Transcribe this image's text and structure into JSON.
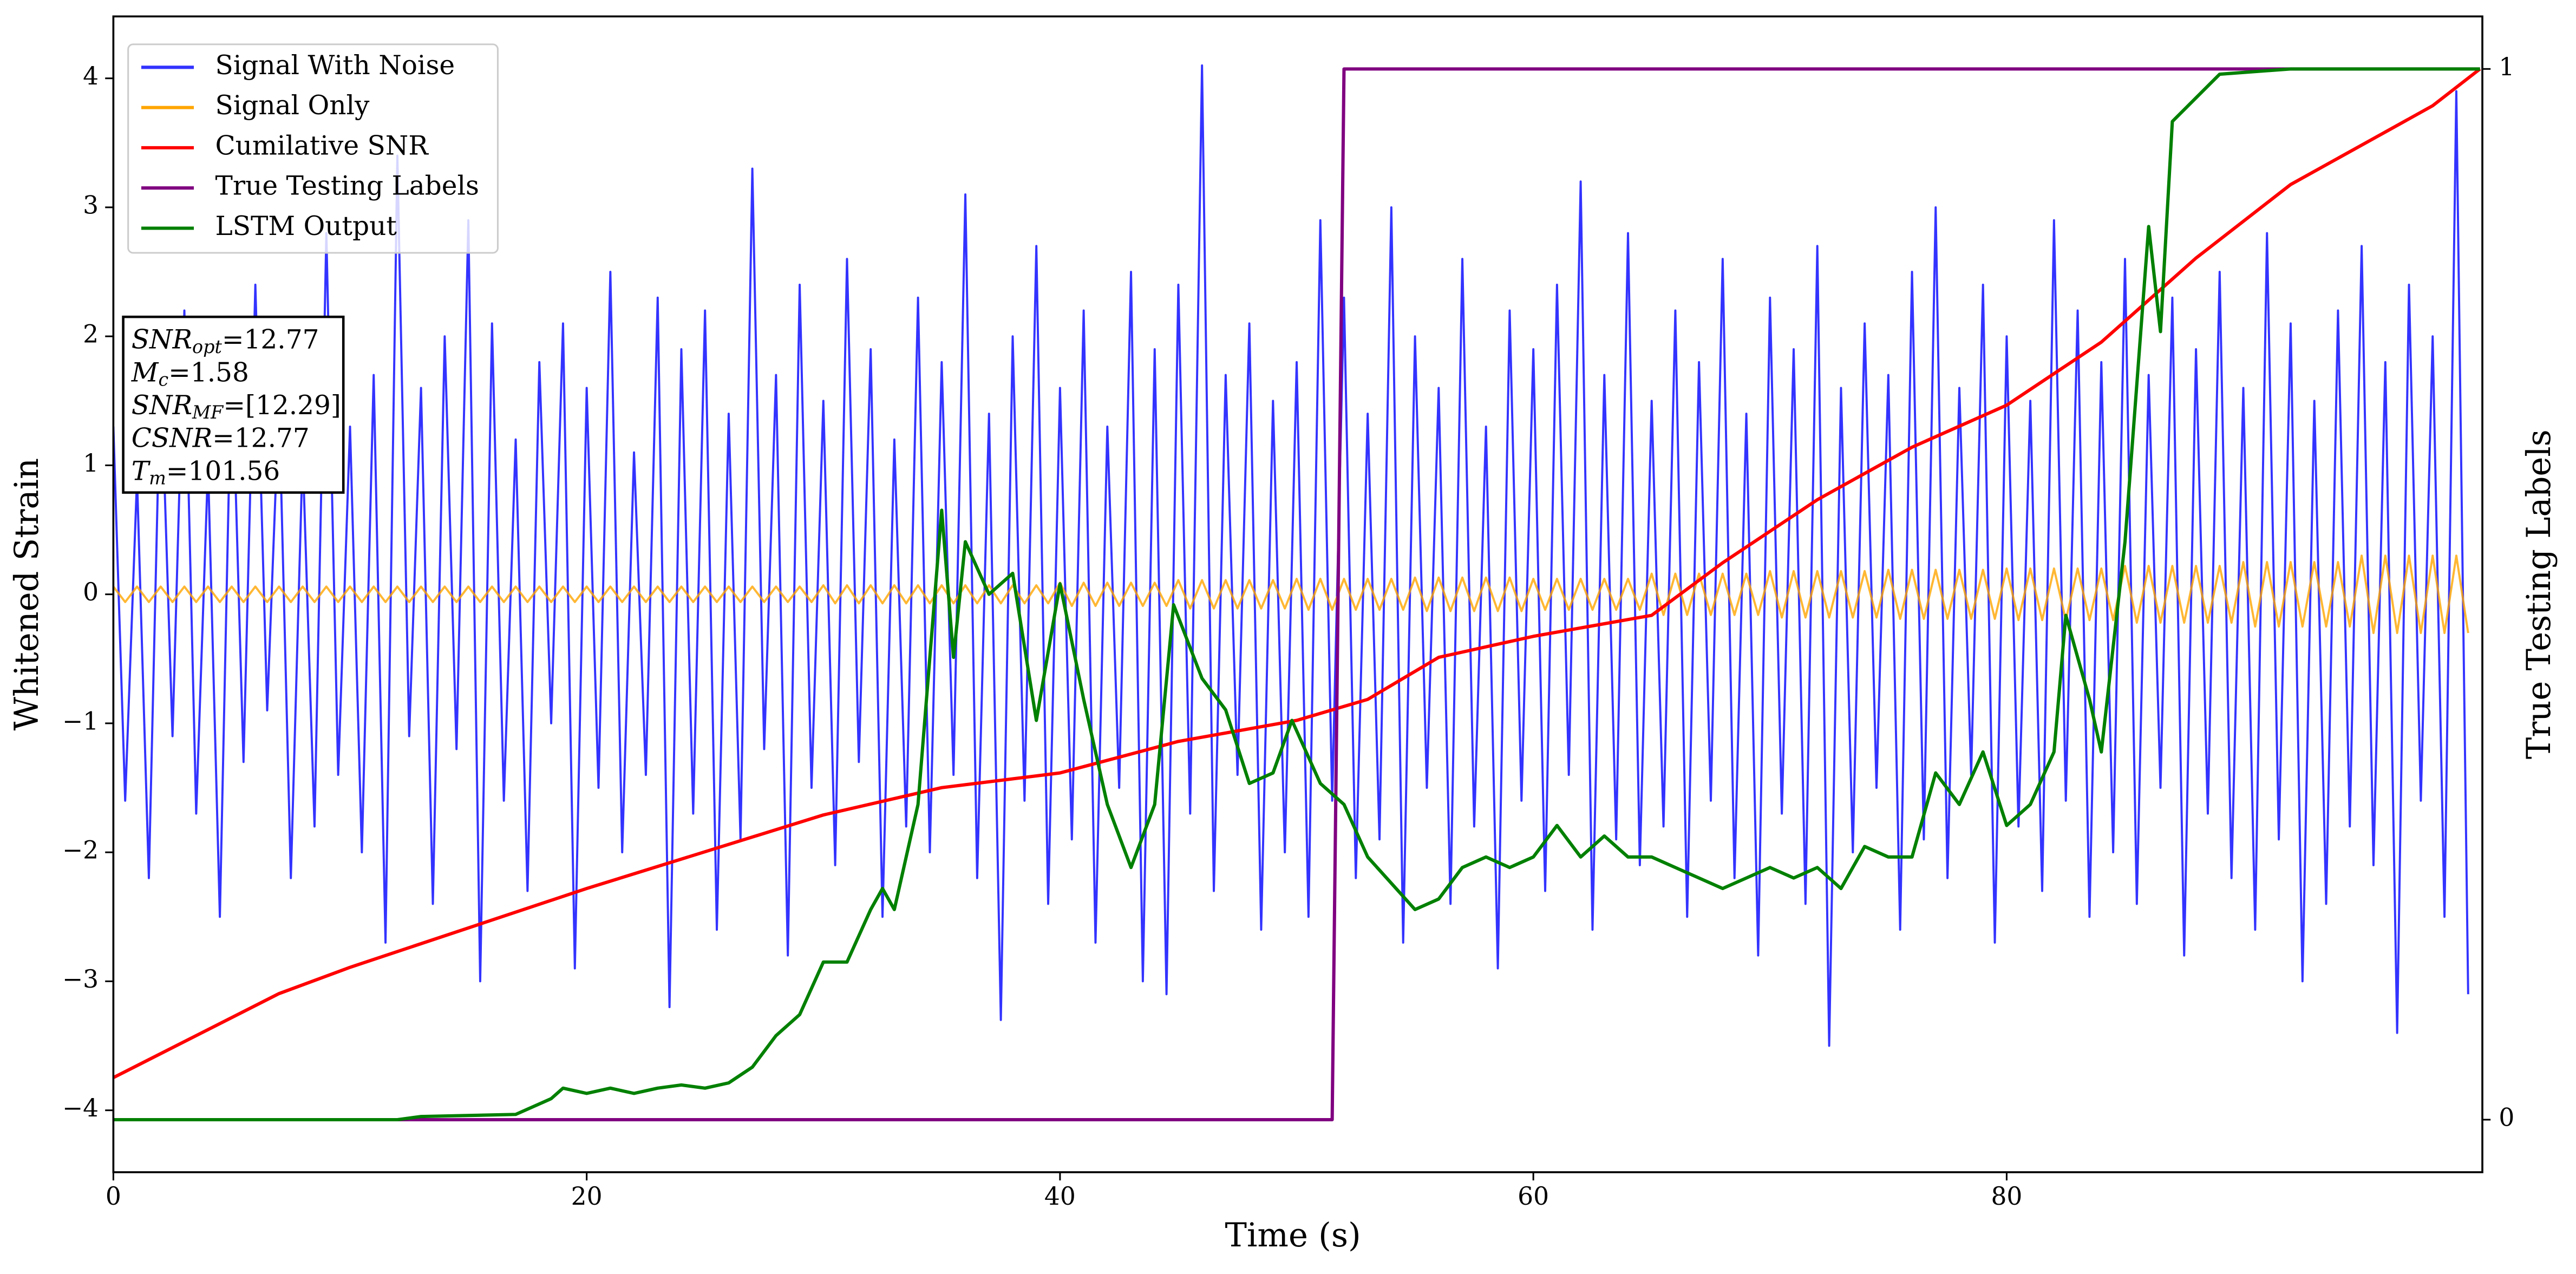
{
  "chart_data": {
    "type": "line",
    "xlabel": "Time (s)",
    "ylabel": "Whitened Strain",
    "y2label": "True Testing Labels",
    "xlim": [
      0,
      100.1
    ],
    "ylim": [
      -4.48,
      4.48
    ],
    "y2lim": [
      -0.05,
      1.05
    ],
    "xticks": [
      0,
      20,
      40,
      60,
      80
    ],
    "yticks": [
      {
        "value": -4,
        "label": "−4"
      },
      {
        "value": -3,
        "label": "−3"
      },
      {
        "value": -2,
        "label": "−2"
      },
      {
        "value": -1,
        "label": "−1"
      },
      0,
      1,
      2,
      3,
      4
    ],
    "y2ticks": [
      0,
      1
    ],
    "legend": "upper left",
    "x": [
      0,
      0.5,
      1,
      1.5,
      2,
      2.5,
      3,
      3.5,
      4,
      4.5,
      5,
      5.5,
      6,
      6.5,
      7,
      7.5,
      8,
      8.5,
      9,
      9.5,
      10,
      10.5,
      11,
      11.5,
      12,
      12.5,
      13,
      13.5,
      14,
      14.5,
      15,
      15.5,
      16,
      16.5,
      17,
      17.5,
      18,
      18.5,
      19,
      19.5,
      20,
      20.5,
      21,
      21.5,
      22,
      22.5,
      23,
      23.5,
      24,
      24.5,
      25,
      25.5,
      26,
      26.5,
      27,
      27.5,
      28,
      28.5,
      29,
      29.5,
      30,
      30.5,
      31,
      31.5,
      32,
      32.5,
      33,
      33.5,
      34,
      34.5,
      35,
      35.5,
      36,
      36.5,
      37,
      37.5,
      38,
      38.5,
      39,
      39.5,
      40,
      40.5,
      41,
      41.5,
      42,
      42.5,
      43,
      43.5,
      44,
      44.5,
      45,
      45.5,
      46,
      46.5,
      47,
      47.5,
      48,
      48.5,
      49,
      49.5,
      50,
      50.5,
      51,
      51.5,
      52,
      52.5,
      53,
      53.5,
      54,
      54.5,
      55,
      55.5,
      56,
      56.5,
      57,
      57.5,
      58,
      58.5,
      59,
      59.5,
      60,
      60.5,
      61,
      61.5,
      62,
      62.5,
      63,
      63.5,
      64,
      64.5,
      65,
      65.5,
      66,
      66.5,
      67,
      67.5,
      68,
      68.5,
      69,
      69.5,
      70,
      70.5,
      71,
      71.5,
      72,
      72.5,
      73,
      73.5,
      74,
      74.5,
      75,
      75.5,
      76,
      76.5,
      77,
      77.5,
      78,
      78.5,
      79,
      79.5,
      80,
      80.5,
      81,
      81.5,
      82,
      82.5,
      83,
      83.5,
      84,
      84.5,
      85,
      85.5,
      86,
      86.5,
      87,
      87.5,
      88,
      88.5,
      89,
      89.5,
      90,
      90.5,
      91,
      91.5,
      92,
      92.5,
      93,
      93.5,
      94,
      94.5,
      95,
      95.5,
      96,
      96.5,
      97,
      97.5,
      98,
      98.5,
      99,
      99.5
    ],
    "series": [
      {
        "name": "Signal With Noise",
        "color": "#3333ff",
        "values": [
          1.3,
          -1.6,
          0.9,
          -2.2,
          1.8,
          -1.1,
          2.2,
          -1.7,
          1.0,
          -2.5,
          1.9,
          -1.3,
          2.4,
          -0.9,
          1.5,
          -2.2,
          1.1,
          -1.8,
          2.8,
          -1.4,
          1.3,
          -2.0,
          1.7,
          -2.7,
          3.4,
          -1.1,
          1.6,
          -2.4,
          2.0,
          -1.2,
          2.9,
          -3.0,
          2.1,
          -1.6,
          1.2,
          -2.3,
          1.8,
          -1.0,
          2.1,
          -2.9,
          1.6,
          -1.5,
          2.5,
          -2.0,
          1.1,
          -1.4,
          2.3,
          -3.2,
          1.9,
          -1.7,
          2.2,
          -2.6,
          1.4,
          -1.9,
          3.3,
          -1.2,
          1.7,
          -2.8,
          2.4,
          -1.5,
          1.5,
          -2.1,
          2.6,
          -1.3,
          1.9,
          -2.5,
          1.2,
          -1.8,
          2.3,
          -2.0,
          1.8,
          -1.4,
          3.1,
          -2.2,
          1.4,
          -3.3,
          2.0,
          -1.6,
          2.7,
          -2.4,
          1.6,
          -1.9,
          2.2,
          -2.7,
          1.3,
          -1.5,
          2.5,
          -3.0,
          1.9,
          -3.1,
          2.4,
          -1.7,
          4.1,
          -2.3,
          1.7,
          -1.4,
          2.1,
          -2.6,
          1.5,
          -2.0,
          1.8,
          -2.5,
          2.9,
          -1.6,
          2.3,
          -2.2,
          1.4,
          -1.9,
          3.0,
          -2.7,
          2.0,
          -1.5,
          1.6,
          -2.4,
          2.6,
          -1.8,
          1.3,
          -2.9,
          2.2,
          -1.6,
          1.9,
          -2.3,
          2.4,
          -1.4,
          3.2,
          -2.6,
          1.7,
          -1.9,
          2.8,
          -2.1,
          1.5,
          -1.8,
          2.2,
          -2.5,
          1.8,
          -1.6,
          2.6,
          -2.2,
          1.4,
          -2.8,
          2.3,
          -1.7,
          1.9,
          -2.4,
          2.7,
          -3.5,
          1.6,
          -2.0,
          2.1,
          -1.5,
          1.7,
          -2.6,
          2.5,
          -1.9,
          3.0,
          -2.2,
          1.6,
          -1.4,
          2.4,
          -2.7,
          2.0,
          -1.8,
          1.5,
          -2.3,
          2.9,
          -1.6,
          2.2,
          -2.5,
          1.8,
          -2.0,
          2.6,
          -2.4,
          1.7,
          -1.5,
          2.3,
          -2.8,
          1.9,
          -1.7,
          2.5,
          -2.2,
          1.6,
          -2.6,
          2.8,
          -1.9,
          2.1,
          -3.0,
          1.5,
          -2.4,
          2.2,
          -1.8,
          2.7,
          -2.1,
          1.8,
          -3.4,
          2.4,
          -1.6,
          2.0,
          -2.5,
          3.9,
          -3.1
        ]
      },
      {
        "name": "Signal Only",
        "color": "#ffa500",
        "values": [
          0.06,
          -0.06,
          0.06,
          -0.06,
          0.06,
          -0.06,
          0.06,
          -0.06,
          0.06,
          -0.06,
          0.06,
          -0.06,
          0.06,
          -0.06,
          0.06,
          -0.06,
          0.06,
          -0.06,
          0.06,
          -0.06,
          0.06,
          -0.06,
          0.06,
          -0.06,
          0.06,
          -0.06,
          0.06,
          -0.06,
          0.06,
          -0.06,
          0.06,
          -0.06,
          0.06,
          -0.06,
          0.06,
          -0.06,
          0.06,
          -0.06,
          0.06,
          -0.06,
          0.06,
          -0.06,
          0.06,
          -0.06,
          0.06,
          -0.06,
          0.06,
          -0.06,
          0.06,
          -0.06,
          0.06,
          -0.06,
          0.06,
          -0.06,
          0.06,
          -0.06,
          0.06,
          -0.06,
          0.06,
          -0.06,
          0.07,
          -0.07,
          0.07,
          -0.07,
          0.07,
          -0.07,
          0.07,
          -0.07,
          0.07,
          -0.07,
          0.07,
          -0.07,
          0.07,
          -0.07,
          0.07,
          -0.07,
          0.07,
          -0.07,
          0.07,
          -0.07,
          0.09,
          -0.09,
          0.09,
          -0.09,
          0.09,
          -0.09,
          0.09,
          -0.09,
          0.09,
          -0.09,
          0.11,
          -0.11,
          0.11,
          -0.11,
          0.11,
          -0.11,
          0.11,
          -0.11,
          0.11,
          -0.11,
          0.12,
          -0.12,
          0.12,
          -0.12,
          0.12,
          -0.12,
          0.12,
          -0.12,
          0.12,
          -0.12,
          0.13,
          -0.13,
          0.13,
          -0.13,
          0.13,
          -0.13,
          0.13,
          -0.13,
          0.13,
          -0.13,
          0.12,
          -0.12,
          0.12,
          -0.12,
          0.12,
          -0.12,
          0.12,
          -0.12,
          0.12,
          -0.12,
          0.16,
          -0.16,
          0.16,
          -0.16,
          0.16,
          -0.16,
          0.16,
          -0.16,
          0.16,
          -0.16,
          0.18,
          -0.18,
          0.18,
          -0.18,
          0.18,
          -0.18,
          0.18,
          -0.18,
          0.18,
          -0.18,
          0.19,
          -0.19,
          0.19,
          -0.19,
          0.19,
          -0.19,
          0.19,
          -0.19,
          0.19,
          -0.19,
          0.2,
          -0.2,
          0.2,
          -0.2,
          0.2,
          -0.2,
          0.2,
          -0.2,
          0.2,
          -0.2,
          0.22,
          -0.22,
          0.22,
          -0.22,
          0.22,
          -0.22,
          0.22,
          -0.22,
          0.22,
          -0.22,
          0.25,
          -0.25,
          0.25,
          -0.25,
          0.25,
          -0.25,
          0.25,
          -0.25,
          0.25,
          -0.25,
          0.3,
          -0.3,
          0.3,
          -0.3,
          0.3,
          -0.3,
          0.3,
          -0.3,
          0.3,
          -0.3
        ]
      },
      {
        "name": "Cumilative SNR",
        "color": "#ff0000",
        "axis": "y2",
        "x": [
          0,
          7,
          10,
          20,
          30,
          35,
          40,
          45,
          50,
          53,
          56,
          60,
          65,
          68,
          72,
          76,
          80,
          84,
          88,
          92,
          96,
          98,
          100
        ],
        "values": [
          0.04,
          0.12,
          0.145,
          0.22,
          0.29,
          0.316,
          0.33,
          0.36,
          0.38,
          0.4,
          0.44,
          0.46,
          0.48,
          0.53,
          0.59,
          0.64,
          0.68,
          0.74,
          0.82,
          0.89,
          0.94,
          0.965,
          1.0
        ]
      },
      {
        "name": "True Testing Labels",
        "color": "#800080",
        "axis": "y2",
        "x": [
          0,
          51.5,
          52,
          100
        ],
        "values": [
          0,
          0,
          1,
          1
        ]
      },
      {
        "name": "LSTM Output",
        "color": "#008000",
        "axis": "y2",
        "x": [
          0,
          12,
          13,
          17,
          18.5,
          19,
          20,
          21,
          22,
          23,
          24,
          25,
          26,
          27,
          28,
          29,
          30,
          31,
          32,
          32.5,
          33,
          34,
          35,
          35.5,
          36,
          37,
          38,
          39,
          40,
          41,
          42,
          43,
          44,
          44.8,
          46,
          47,
          48,
          49,
          49.8,
          51,
          52,
          53,
          55,
          56,
          57,
          58,
          59,
          60,
          61,
          62,
          63,
          64,
          65,
          66,
          67,
          68,
          69,
          70,
          71,
          72,
          73,
          74,
          75,
          76,
          77,
          78,
          79,
          80,
          81,
          82,
          82.5,
          83.5,
          84,
          85,
          86,
          86.5,
          87,
          89,
          92,
          100
        ],
        "values": [
          0,
          0,
          0.003,
          0.005,
          0.02,
          0.03,
          0.025,
          0.03,
          0.025,
          0.03,
          0.033,
          0.03,
          0.035,
          0.05,
          0.08,
          0.1,
          0.15,
          0.15,
          0.2,
          0.22,
          0.2,
          0.3,
          0.58,
          0.44,
          0.55,
          0.5,
          0.52,
          0.38,
          0.51,
          0.4,
          0.3,
          0.24,
          0.3,
          0.49,
          0.42,
          0.39,
          0.32,
          0.33,
          0.38,
          0.32,
          0.3,
          0.25,
          0.2,
          0.21,
          0.24,
          0.25,
          0.24,
          0.25,
          0.28,
          0.25,
          0.27,
          0.25,
          0.25,
          0.24,
          0.23,
          0.22,
          0.23,
          0.24,
          0.23,
          0.24,
          0.22,
          0.26,
          0.25,
          0.25,
          0.33,
          0.3,
          0.35,
          0.28,
          0.3,
          0.35,
          0.48,
          0.4,
          0.35,
          0.55,
          0.85,
          0.75,
          0.95,
          0.995,
          1,
          1
        ]
      }
    ],
    "annotation_lines": [
      {
        "symbol": "SNR",
        "sub": "opt",
        "text": "=12.77"
      },
      {
        "symbol": "M",
        "sub": "c",
        "text": "=1.58"
      },
      {
        "symbol": "SNR",
        "sub": "MF",
        "text": "=[12.29]"
      },
      {
        "symbol": "CSNR",
        "text": "=12.77"
      },
      {
        "symbol": "T",
        "sub": "m",
        "text": "=101.56"
      }
    ]
  }
}
